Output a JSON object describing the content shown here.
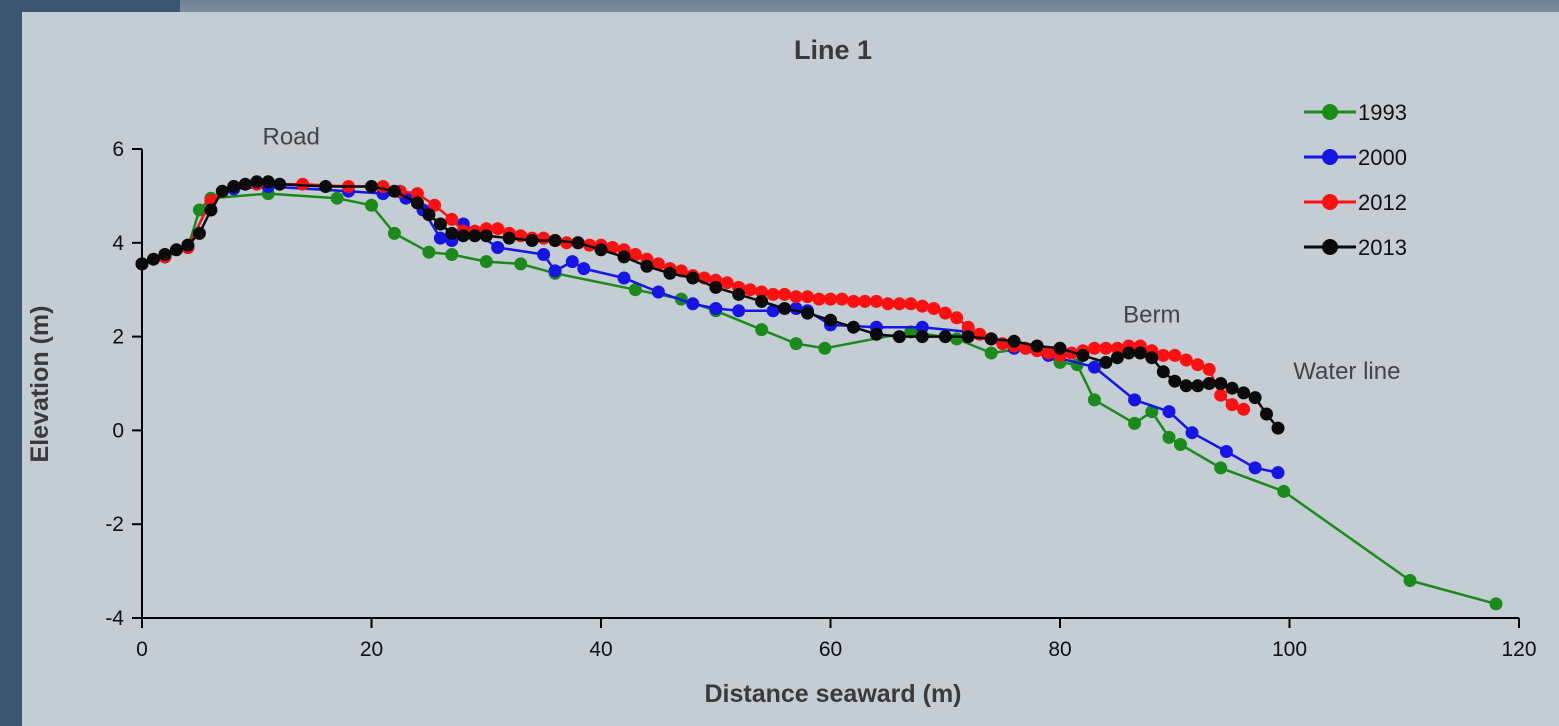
{
  "chart_data": {
    "type": "line",
    "title": "Line 1",
    "xlabel": "Distance seaward (m)",
    "ylabel": "Elevation (m)",
    "xlim": [
      0,
      120
    ],
    "ylim": [
      -4,
      6
    ],
    "xticks": [
      0,
      20,
      40,
      60,
      80,
      100,
      120
    ],
    "yticks": [
      -4,
      -2,
      0,
      2,
      4,
      6
    ],
    "grid": false,
    "legend": "top-right",
    "annotations": [
      {
        "text": "Road",
        "x": 13,
        "y": 6.1
      },
      {
        "text": "Berm",
        "x": 88,
        "y": 2.3
      },
      {
        "text": "Water line",
        "x": 105,
        "y": 1.1
      }
    ],
    "series": [
      {
        "name": "1993",
        "color": "#1a8a1a",
        "x": [
          0,
          2,
          4,
          5,
          6,
          11,
          17,
          20,
          22,
          25,
          27,
          30,
          33,
          36,
          43,
          47,
          50,
          54,
          57,
          59.5,
          67,
          71,
          74,
          77,
          80,
          81.5,
          83,
          86.5,
          88,
          89.5,
          90.5,
          94,
          99.5,
          110.5,
          118
        ],
        "y": [
          3.55,
          3.7,
          3.9,
          4.7,
          4.95,
          5.05,
          4.95,
          4.8,
          4.2,
          3.8,
          3.75,
          3.6,
          3.55,
          3.35,
          3.0,
          2.8,
          2.55,
          2.15,
          1.85,
          1.75,
          2.1,
          1.95,
          1.65,
          1.75,
          1.45,
          1.4,
          0.65,
          0.15,
          0.4,
          -0.15,
          -0.3,
          -0.8,
          -1.3,
          -3.2,
          -3.7
        ]
      },
      {
        "name": "2000",
        "color": "#1515e6",
        "x": [
          0,
          2,
          4,
          6,
          8,
          11,
          18,
          21,
          23,
          24.5,
          26,
          27,
          28,
          31,
          35,
          36,
          37.5,
          38.5,
          42,
          45,
          48,
          50,
          52,
          55,
          57,
          58,
          60,
          64,
          68,
          72,
          76,
          79,
          83,
          86.5,
          89.5,
          91.5,
          94.5,
          97,
          99
        ],
        "y": [
          3.55,
          3.7,
          3.9,
          4.9,
          5.15,
          5.2,
          5.1,
          5.05,
          4.95,
          4.7,
          4.1,
          4.05,
          4.4,
          3.9,
          3.75,
          3.4,
          3.6,
          3.45,
          3.25,
          2.95,
          2.7,
          2.6,
          2.55,
          2.55,
          2.6,
          2.55,
          2.25,
          2.2,
          2.2,
          2.1,
          1.75,
          1.6,
          1.35,
          0.65,
          0.4,
          -0.05,
          -0.45,
          -0.8,
          -0.9
        ]
      },
      {
        "name": "2012",
        "color": "#ff1010",
        "x": [
          0,
          2,
          4,
          6,
          8,
          10,
          14,
          18,
          21,
          22.5,
          24,
          25.5,
          27,
          28,
          29,
          30,
          31,
          32,
          33,
          34,
          35,
          36,
          37,
          38,
          39,
          40,
          41,
          42,
          43,
          44,
          45,
          46,
          47,
          48,
          49,
          50,
          51,
          52,
          53,
          54,
          55,
          56,
          57,
          58,
          59,
          60,
          61,
          62,
          63,
          64,
          65,
          66,
          67,
          68,
          69,
          70,
          71,
          72,
          73,
          74,
          75,
          76,
          77,
          78,
          79,
          80,
          81,
          82,
          83,
          84,
          85,
          86,
          87,
          88,
          89,
          90,
          91,
          92,
          93,
          94,
          95,
          96
        ],
        "y": [
          3.55,
          3.7,
          3.9,
          4.9,
          5.2,
          5.25,
          5.25,
          5.2,
          5.2,
          5.1,
          5.05,
          4.8,
          4.5,
          4.25,
          4.25,
          4.3,
          4.3,
          4.2,
          4.15,
          4.1,
          4.1,
          4.05,
          4.0,
          4.0,
          3.95,
          3.95,
          3.9,
          3.85,
          3.75,
          3.65,
          3.55,
          3.45,
          3.4,
          3.3,
          3.25,
          3.2,
          3.15,
          3.05,
          3.0,
          2.95,
          2.9,
          2.9,
          2.85,
          2.85,
          2.8,
          2.8,
          2.8,
          2.75,
          2.75,
          2.75,
          2.7,
          2.7,
          2.7,
          2.65,
          2.6,
          2.5,
          2.4,
          2.2,
          2.05,
          1.95,
          1.85,
          1.8,
          1.75,
          1.7,
          1.65,
          1.6,
          1.65,
          1.7,
          1.75,
          1.75,
          1.75,
          1.8,
          1.8,
          1.7,
          1.6,
          1.6,
          1.5,
          1.4,
          1.3,
          0.75,
          0.55,
          0.45
        ]
      },
      {
        "name": "2013",
        "color": "#0a0a0a",
        "x": [
          0,
          1,
          2,
          3,
          4,
          5,
          6,
          7,
          8,
          9,
          10,
          11,
          12,
          16,
          20,
          22,
          24,
          25,
          26,
          27,
          28,
          29,
          30,
          32,
          34,
          36,
          38,
          40,
          42,
          44,
          46,
          48,
          50,
          52,
          54,
          56,
          58,
          60,
          62,
          64,
          66,
          68,
          70,
          72,
          74,
          76,
          78,
          80,
          82,
          84,
          85,
          86,
          87,
          88,
          89,
          90,
          91,
          92,
          93,
          94,
          95,
          96,
          97,
          98,
          99
        ],
        "y": [
          3.55,
          3.65,
          3.75,
          3.85,
          3.95,
          4.2,
          4.7,
          5.1,
          5.2,
          5.25,
          5.3,
          5.3,
          5.25,
          5.2,
          5.2,
          5.1,
          4.85,
          4.6,
          4.4,
          4.2,
          4.15,
          4.15,
          4.15,
          4.1,
          4.05,
          4.05,
          4.0,
          3.85,
          3.7,
          3.5,
          3.35,
          3.25,
          3.05,
          2.9,
          2.75,
          2.6,
          2.5,
          2.35,
          2.2,
          2.05,
          2.0,
          2.0,
          2.0,
          2.0,
          1.95,
          1.9,
          1.8,
          1.75,
          1.6,
          1.45,
          1.55,
          1.65,
          1.65,
          1.55,
          1.25,
          1.05,
          0.95,
          0.95,
          1.0,
          1.0,
          0.9,
          0.8,
          0.7,
          0.35,
          0.05
        ]
      }
    ]
  }
}
